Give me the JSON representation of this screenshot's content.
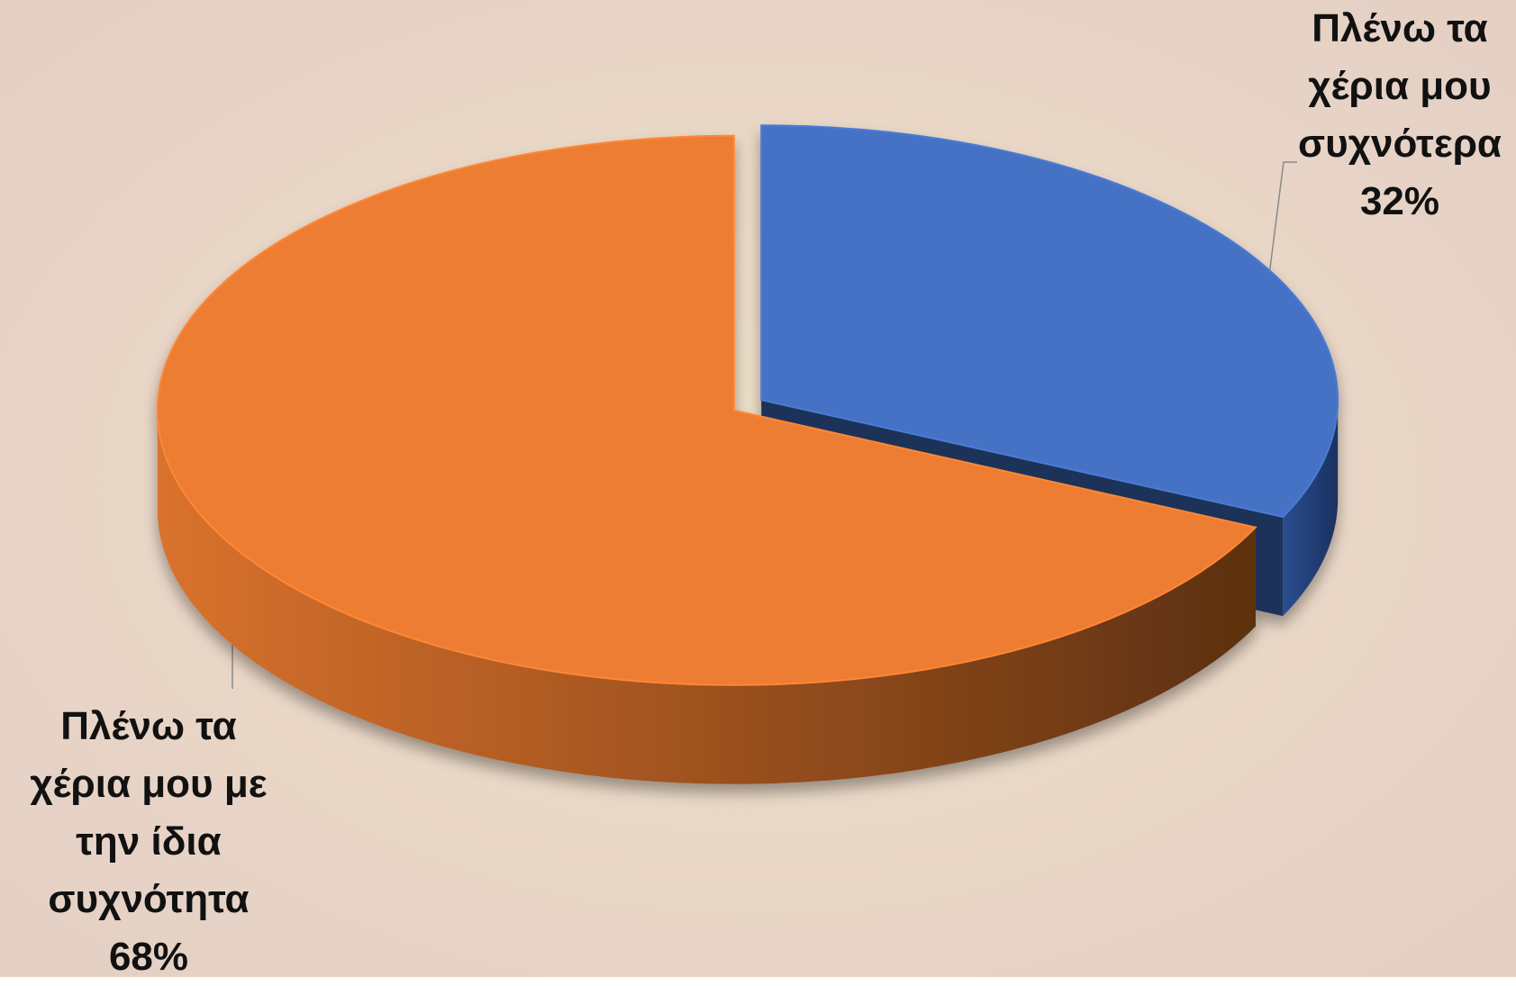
{
  "colors": {
    "series_0": "#4472C4",
    "series_1": "#ED7D31",
    "background": "#ead8c6"
  },
  "chart_data": {
    "type": "pie",
    "style": "3d-exploded",
    "grid": false,
    "legend": "none",
    "slices": [
      {
        "label": "Πλένω τα χέρια μου συχνότερα",
        "label_lines": [
          "Πλένω τα",
          "χέρια μου",
          "συχνότερα"
        ],
        "value": 32,
        "value_label": "32%",
        "color": "#4472C4"
      },
      {
        "label": "Πλένω τα χέρια μου με την ίδια συχνότητα",
        "label_lines": [
          "Πλένω τα",
          "χέρια μου με",
          "την ίδια",
          "συχνότητα"
        ],
        "value": 68,
        "value_label": "68%",
        "color": "#ED7D31"
      }
    ]
  }
}
